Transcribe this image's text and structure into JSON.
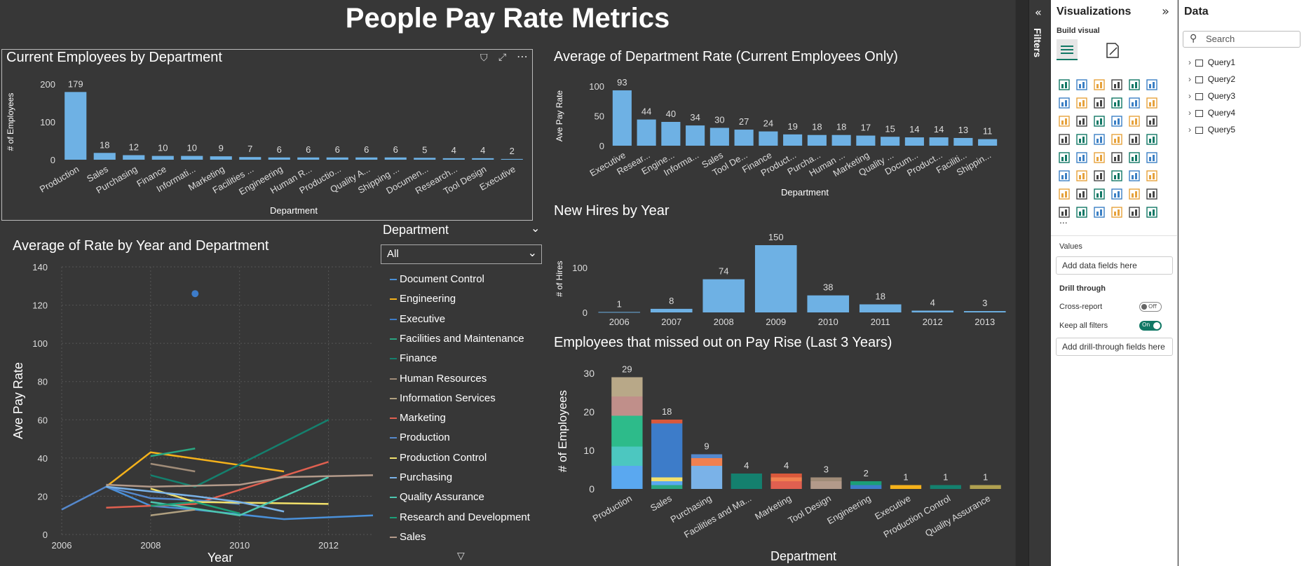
{
  "page_title": "People Pay Rate Metrics",
  "charts": {
    "employees_by_department": {
      "title": "Current Employees by Department",
      "ylabel": "# of Employees",
      "xlabel": "Department",
      "color": "#6eb1e4"
    },
    "avg_department_rate": {
      "title": "Average of Department Rate (Current Employees Only)",
      "ylabel": "Ave Pay Rate",
      "xlabel": "Department",
      "color": "#6eb1e4"
    },
    "new_hires": {
      "title": "New Hires by Year",
      "ylabel": "# of Hires",
      "color": "#6eb1e4"
    },
    "avg_rate_year_dept": {
      "title": "Average of Rate by Year and Department",
      "ylabel": "Ave Pay Rate",
      "xlabel": "Year"
    },
    "missed_pay_rise": {
      "title": "Employees that missed out on Pay Rise (Last 3 Years)",
      "ylabel": "# of Employees",
      "xlabel": "Department"
    }
  },
  "chart_data": [
    {
      "type": "bar",
      "categories": [
        "Production",
        "Sales",
        "Purchasing",
        "Finance",
        "Informati...",
        "Marketing",
        "Facilities ...",
        "Engineering",
        "Human R...",
        "Productio...",
        "Quality A...",
        "Shipping ...",
        "Documen...",
        "Research...",
        "Tool Design",
        "Executive"
      ],
      "values": [
        179,
        18,
        12,
        10,
        10,
        9,
        7,
        6,
        6,
        6,
        6,
        6,
        5,
        4,
        4,
        2
      ],
      "title": "Current Employees by Department",
      "xlabel": "Department",
      "ylabel": "# of Employees",
      "ylim": [
        0,
        200
      ],
      "yticks": [
        0,
        100,
        200
      ]
    },
    {
      "type": "bar",
      "categories": [
        "Executive",
        "Resear...",
        "Engine...",
        "Informa...",
        "Sales",
        "Tool De...",
        "Finance",
        "Product...",
        "Purcha...",
        "Human ...",
        "Marketing",
        "Quality ...",
        "Docum...",
        "Product...",
        "Faciliti...",
        "Shippin..."
      ],
      "values": [
        93,
        44,
        40,
        34,
        30,
        27,
        24,
        19,
        18,
        18,
        17,
        15,
        14,
        14,
        13,
        11
      ],
      "title": "Average of Department Rate (Current Employees Only)",
      "xlabel": "Department",
      "ylabel": "Ave Pay Rate",
      "ylim": [
        0,
        100
      ],
      "yticks": [
        0,
        50,
        100
      ]
    },
    {
      "type": "bar",
      "categories": [
        "2006",
        "2007",
        "2008",
        "2009",
        "2010",
        "2011",
        "2012",
        "2013"
      ],
      "values": [
        1,
        8,
        74,
        150,
        38,
        18,
        4,
        3
      ],
      "title": "New Hires by Year",
      "ylabel": "# of Hires",
      "ylim": [
        0,
        150
      ],
      "yticks": [
        0,
        100
      ]
    },
    {
      "type": "line",
      "title": "Average of Rate by Year and Department",
      "xlabel": "Year",
      "ylabel": "Ave Pay Rate",
      "xlim": [
        2006,
        2013
      ],
      "ylim": [
        0,
        140
      ],
      "xticks": [
        2006,
        2008,
        2010,
        2012
      ],
      "yticks": [
        0,
        20,
        40,
        60,
        80,
        100,
        120,
        140
      ],
      "series": [
        {
          "name": "Document Control",
          "color": "#4a90d9",
          "points": [
            [
              2007,
              25
            ],
            [
              2008,
              15
            ],
            [
              2009,
              13
            ],
            [
              2011,
              8
            ],
            [
              2013,
              10
            ]
          ]
        },
        {
          "name": "Engineering",
          "color": "#f5b21b",
          "points": [
            [
              2007,
              25
            ],
            [
              2008,
              43
            ],
            [
              2011,
              33
            ]
          ]
        },
        {
          "name": "Executive",
          "color": "#3d7cc9",
          "points": [
            [
              2009,
              126
            ]
          ]
        },
        {
          "name": "Facilities and Maintenance",
          "color": "#2aa782",
          "points": [
            [
              2008,
              41
            ],
            [
              2009,
              45
            ]
          ]
        },
        {
          "name": "Finance",
          "color": "#14806e",
          "points": [
            [
              2008,
              31
            ],
            [
              2009,
              25
            ],
            [
              2012,
              60
            ]
          ]
        },
        {
          "name": "Human Resources",
          "color": "#a08c78",
          "points": [
            [
              2008,
              37
            ],
            [
              2009,
              33
            ]
          ]
        },
        {
          "name": "Information Services",
          "color": "#b0a080",
          "points": [
            [
              2008,
              10
            ],
            [
              2009,
              13
            ]
          ]
        },
        {
          "name": "Marketing",
          "color": "#e06050",
          "points": [
            [
              2007,
              14
            ],
            [
              2009,
              16
            ],
            [
              2012,
              38
            ]
          ]
        },
        {
          "name": "Production",
          "color": "#5588cc",
          "points": [
            [
              2006,
              13
            ],
            [
              2007,
              25
            ],
            [
              2008,
              19
            ],
            [
              2009,
              18
            ],
            [
              2010,
              16
            ]
          ]
        },
        {
          "name": "Production Control",
          "color": "#f2e06a",
          "points": [
            [
              2008,
              24
            ],
            [
              2009,
              17
            ],
            [
              2012,
              16
            ]
          ]
        },
        {
          "name": "Purchasing",
          "color": "#7ab2e8",
          "points": [
            [
              2007,
              25
            ],
            [
              2009,
              20
            ],
            [
              2010,
              17
            ],
            [
              2011,
              12
            ]
          ]
        },
        {
          "name": "Quality Assurance",
          "color": "#4dc7b0",
          "points": [
            [
              2008,
              17
            ],
            [
              2010,
              10
            ],
            [
              2012,
              30
            ]
          ]
        },
        {
          "name": "Research and Development",
          "color": "#1b9e77",
          "points": [
            [
              2008,
              15
            ],
            [
              2009,
              17
            ],
            [
              2010,
              11
            ]
          ]
        },
        {
          "name": "Sales",
          "color": "#b39a8a",
          "points": [
            [
              2007,
              26
            ],
            [
              2008,
              25
            ],
            [
              2010,
              26
            ],
            [
              2011,
              30
            ],
            [
              2013,
              31
            ]
          ]
        }
      ]
    },
    {
      "type": "bar",
      "stacked": true,
      "categories": [
        "Production",
        "Sales",
        "Purchasing",
        "Facilities and Ma...",
        "Marketing",
        "Tool Design",
        "Engineering",
        "Executive",
        "Production Control",
        "Quality Assurance"
      ],
      "values": [
        29,
        18,
        9,
        4,
        4,
        3,
        2,
        1,
        1,
        1
      ],
      "title": "Employees that missed out on Pay Rise (Last 3 Years)",
      "xlabel": "Department",
      "ylabel": "# of Employees",
      "ylim": [
        0,
        30
      ],
      "yticks": [
        0,
        10,
        20,
        30
      ],
      "segments": [
        [
          [
            6,
            "#5aa8f0"
          ],
          [
            5,
            "#4cc7c0"
          ],
          [
            8,
            "#2dbb8a"
          ],
          [
            5,
            "#c08f8a"
          ],
          [
            5,
            "#b8a888"
          ]
        ],
        [
          [
            1,
            "#2aa782"
          ],
          [
            1,
            "#5aa8f0"
          ],
          [
            1,
            "#f2e06a"
          ],
          [
            14,
            "#3d7cc9"
          ],
          [
            1,
            "#d9583b"
          ]
        ],
        [
          [
            6,
            "#7ab2e8"
          ],
          [
            2,
            "#f08050"
          ],
          [
            1,
            "#5588cc"
          ]
        ],
        [
          [
            4,
            "#14806e"
          ]
        ],
        [
          [
            2,
            "#e06050"
          ],
          [
            1,
            "#f08050"
          ],
          [
            1,
            "#d9583b"
          ]
        ],
        [
          [
            2,
            "#b39a8a"
          ],
          [
            1,
            "#a08c78"
          ]
        ],
        [
          [
            1,
            "#3d7cc9"
          ],
          [
            1,
            "#1b9e77"
          ]
        ],
        [
          [
            1,
            "#f5b21b"
          ]
        ],
        [
          [
            1,
            "#14806e"
          ]
        ],
        [
          [
            1,
            "#b0a050"
          ]
        ]
      ]
    }
  ],
  "slicer": {
    "header": "Department",
    "selected": "All",
    "chevron": "chevron-down-icon"
  },
  "legend": {
    "items": [
      "Document Control",
      "Engineering",
      "Executive",
      "Facilities and Maintenance",
      "Finance",
      "Human Resources",
      "Information Services",
      "Marketing",
      "Production",
      "Production Control",
      "Purchasing",
      "Quality Assurance",
      "Research and Development",
      "Sales"
    ],
    "colors": [
      "#4a90d9",
      "#f5b21b",
      "#3d7cc9",
      "#2aa782",
      "#14806e",
      "#a08c78",
      "#b0a080",
      "#e06050",
      "#5588cc",
      "#f2e06a",
      "#7ab2e8",
      "#4dc7b0",
      "#1b9e77",
      "#b39a8a"
    ]
  },
  "filters_pane": {
    "label": "Filters"
  },
  "visualizations_pane": {
    "title": "Visualizations",
    "build_visual": "Build visual",
    "more": "...",
    "values_label": "Values",
    "values_placeholder": "Add data fields here",
    "drill_through": "Drill through",
    "cross_report": "Cross-report",
    "cross_report_state": "Off",
    "keep_all_filters": "Keep all filters",
    "keep_all_filters_state": "On",
    "drill_placeholder": "Add drill-through fields here"
  },
  "data_pane": {
    "title": "Data",
    "search_placeholder": "Search",
    "queries": [
      "Query1",
      "Query2",
      "Query3",
      "Query4",
      "Query5"
    ]
  }
}
